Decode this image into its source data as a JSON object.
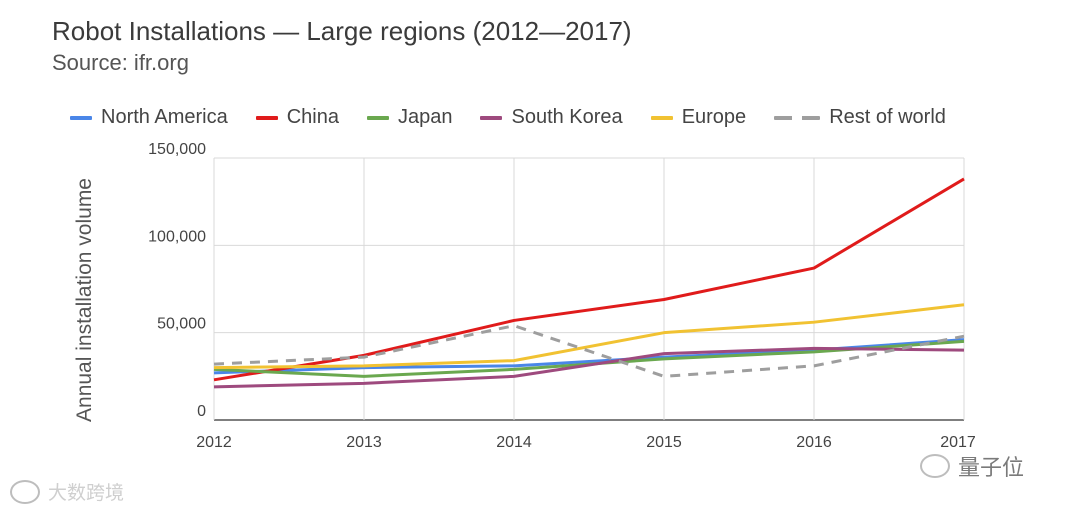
{
  "header": {
    "title": "Robot Installations — Large regions (2012—2017)",
    "subtitle": "Source: ifr.org"
  },
  "watermarks": {
    "left": "大数跨境",
    "right": "量子位"
  },
  "chart_data": {
    "type": "line",
    "title": "Robot Installations — Large regions (2012—2017)",
    "subtitle": "Source: ifr.org",
    "xlabel": "",
    "ylabel": "Annual installation volume",
    "categories": [
      "2012",
      "2013",
      "2014",
      "2015",
      "2016",
      "2017"
    ],
    "ylim": [
      0,
      150000
    ],
    "yticks": [
      0,
      50000,
      100000,
      150000
    ],
    "ytick_labels": [
      "0",
      "50,000",
      "100,000",
      "150,000"
    ],
    "grid": true,
    "legend_position": "top",
    "series": [
      {
        "name": "North America",
        "color": "#4a86e8",
        "dashed": false,
        "values": [
          27000,
          30000,
          31000,
          36000,
          40000,
          46000
        ]
      },
      {
        "name": "China",
        "color": "#e01b1b",
        "dashed": false,
        "values": [
          23000,
          37000,
          57000,
          69000,
          87000,
          138000
        ]
      },
      {
        "name": "Japan",
        "color": "#6aa84f",
        "dashed": false,
        "values": [
          29000,
          25000,
          29000,
          35000,
          39000,
          45000
        ]
      },
      {
        "name": "South Korea",
        "color": "#9e4a7e",
        "dashed": false,
        "values": [
          19000,
          21000,
          25000,
          38000,
          41000,
          40000
        ]
      },
      {
        "name": "Europe",
        "color": "#f1c232",
        "dashed": false,
        "values": [
          30000,
          31000,
          34000,
          50000,
          56000,
          66000
        ]
      },
      {
        "name": "Rest of world",
        "color": "#9e9e9e",
        "dashed": true,
        "values": [
          32000,
          36000,
          54000,
          25000,
          31000,
          48000
        ]
      }
    ]
  }
}
